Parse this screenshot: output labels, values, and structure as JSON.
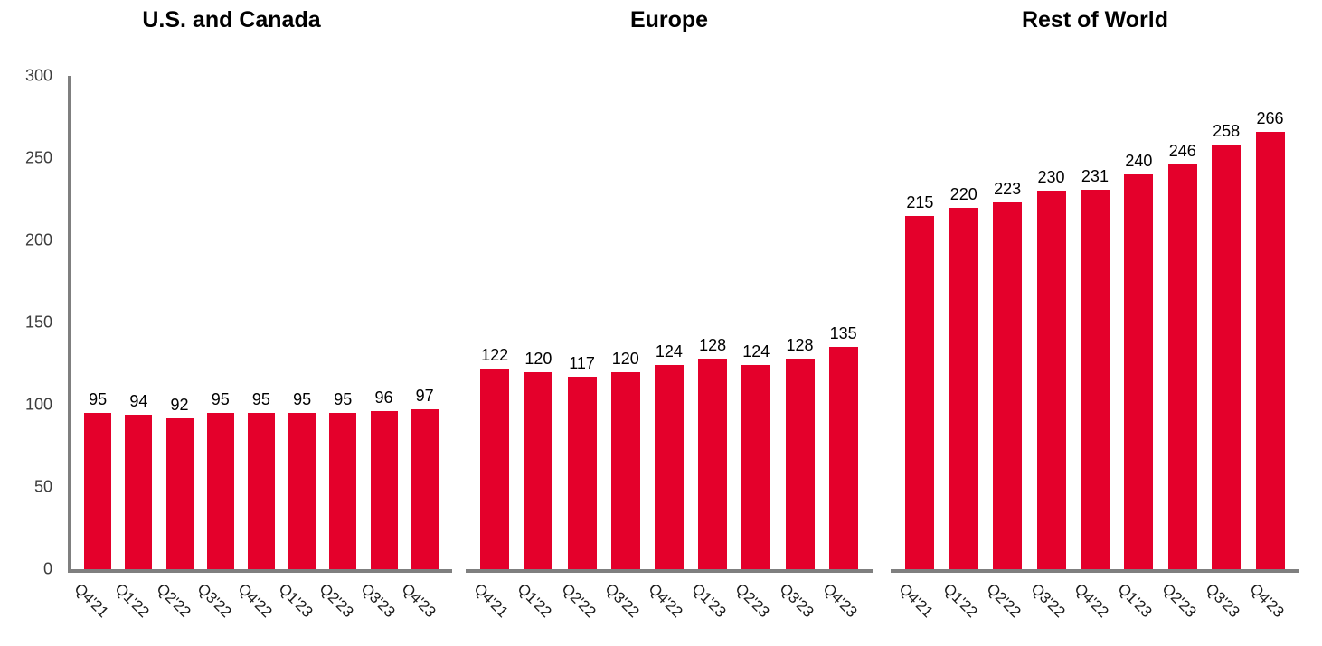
{
  "figure": {
    "y_axis": {
      "max": 300,
      "min": 0,
      "ticks": [
        300,
        250,
        200,
        150,
        100,
        50,
        0
      ]
    },
    "categories": [
      "Q4'21",
      "Q1'22",
      "Q2'22",
      "Q3'22",
      "Q4'22",
      "Q1'23",
      "Q2'23",
      "Q3'23",
      "Q4'23"
    ]
  },
  "chart_data": [
    {
      "type": "bar",
      "title": "U.S. and Canada",
      "categories": [
        "Q4'21",
        "Q1'22",
        "Q2'22",
        "Q3'22",
        "Q4'22",
        "Q1'23",
        "Q2'23",
        "Q3'23",
        "Q4'23"
      ],
      "values": [
        95,
        94,
        92,
        95,
        95,
        95,
        95,
        96,
        97
      ],
      "xlabel": "",
      "ylabel": "",
      "ylim": [
        0,
        300
      ],
      "grid": false,
      "legend": false,
      "bar_color": "#E4002B"
    },
    {
      "type": "bar",
      "title": "Europe",
      "categories": [
        "Q4'21",
        "Q1'22",
        "Q2'22",
        "Q3'22",
        "Q4'22",
        "Q1'23",
        "Q2'23",
        "Q3'23",
        "Q4'23"
      ],
      "values": [
        122,
        120,
        117,
        120,
        124,
        128,
        124,
        128,
        135
      ],
      "xlabel": "",
      "ylabel": "",
      "ylim": [
        0,
        300
      ],
      "grid": false,
      "legend": false,
      "bar_color": "#E4002B"
    },
    {
      "type": "bar",
      "title": "Rest of World",
      "categories": [
        "Q4'21",
        "Q1'22",
        "Q2'22",
        "Q3'22",
        "Q4'22",
        "Q1'23",
        "Q2'23",
        "Q3'23",
        "Q4'23"
      ],
      "values": [
        215,
        220,
        223,
        230,
        231,
        240,
        246,
        258,
        266
      ],
      "xlabel": "",
      "ylabel": "",
      "ylim": [
        0,
        300
      ],
      "grid": false,
      "legend": false,
      "bar_color": "#E4002B"
    }
  ],
  "colors": {
    "bar": "#E4002B",
    "axis_line": "#7F7F7F",
    "tick_text": "#3D3D3D",
    "label_text": "#000000"
  }
}
